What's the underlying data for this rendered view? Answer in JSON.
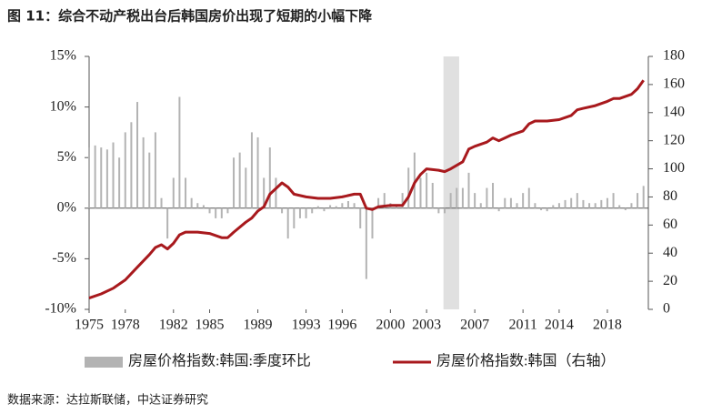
{
  "chart_data": {
    "type": "bar_line",
    "title": "图 11：综合不动产税出台后韩国房价出现了短期的小幅下降",
    "source": "数据来源：达拉斯联储，中达证券研究",
    "xlim": [
      1975,
      2021.4
    ],
    "xticks": [
      1975,
      1978,
      1982,
      1985,
      1989,
      1993,
      1996,
      2000,
      2003,
      2007,
      2011,
      2014,
      2018
    ],
    "ylim": [
      -10,
      15
    ],
    "yticks": [
      {
        "value": -10,
        "label": "-10%"
      },
      {
        "value": -5,
        "label": "-5%"
      },
      {
        "value": 0,
        "label": "0%"
      },
      {
        "value": 5,
        "label": "5%"
      },
      {
        "value": 10,
        "label": "10%"
      },
      {
        "value": 15,
        "label": "15%"
      }
    ],
    "y2lim": [
      0,
      180
    ],
    "y2ticks": [
      0,
      20,
      40,
      60,
      80,
      100,
      120,
      140,
      160,
      180
    ],
    "highlight_x": [
      2004.4,
      2005.7
    ],
    "series": [
      {
        "name": "房屋价格指数:韩国:季度环比",
        "color": "#b3b3b3",
        "kind": "bar",
        "x": [
          1975,
          1975.5,
          1976,
          1976.5,
          1977,
          1977.5,
          1978,
          1978.5,
          1979,
          1979.5,
          1980,
          1980.5,
          1981,
          1981.5,
          1982,
          1982.5,
          1983,
          1983.5,
          1984,
          1984.5,
          1985,
          1985.5,
          1986,
          1986.5,
          1987,
          1987.5,
          1988,
          1988.5,
          1989,
          1989.5,
          1990,
          1990.5,
          1991,
          1991.5,
          1992,
          1992.5,
          1993,
          1993.5,
          1994,
          1994.5,
          1995,
          1995.5,
          1996,
          1996.5,
          1997,
          1997.5,
          1998,
          1998.5,
          1999,
          1999.5,
          2000,
          2000.5,
          2001,
          2001.5,
          2002,
          2002.5,
          2003,
          2003.5,
          2004,
          2004.5,
          2005,
          2005.5,
          2006,
          2006.5,
          2007,
          2007.5,
          2008,
          2008.5,
          2009,
          2009.5,
          2010,
          2010.5,
          2011,
          2011.5,
          2012,
          2012.5,
          2013,
          2013.5,
          2014,
          2014.5,
          2015,
          2015.5,
          2016,
          2016.5,
          2017,
          2017.5,
          2018,
          2018.5,
          2019,
          2019.5,
          2020,
          2020.5,
          2021
        ],
        "values": [
          6,
          6.2,
          6,
          5.8,
          6.5,
          5,
          7.5,
          8.5,
          10.5,
          7,
          5.5,
          7.5,
          1,
          -3,
          3,
          11,
          3,
          1,
          0.5,
          0.3,
          -0.5,
          -1,
          -1,
          -0.5,
          5,
          5.5,
          4,
          7.5,
          7,
          3,
          6,
          3,
          -0.5,
          -3,
          -2,
          -1,
          -1,
          -0.5,
          0.2,
          -0.3,
          0.3,
          0.2,
          0.5,
          0.7,
          0.5,
          -2,
          -7,
          -3,
          1,
          1.5,
          0.5,
          0.3,
          1.5,
          4,
          5.5,
          3,
          3.5,
          2.5,
          -0.5,
          -0.5,
          1.5,
          2,
          2,
          3.5,
          1.5,
          0.5,
          2,
          2.5,
          -0.3,
          1,
          1,
          0.5,
          1.5,
          2,
          0.5,
          -0.2,
          -0.3,
          0.3,
          0.5,
          0.8,
          1,
          1.5,
          0.8,
          0.5,
          0.5,
          0.8,
          1,
          1.5,
          0.3,
          -0.2,
          0.5,
          1.5,
          2.2
        ]
      },
      {
        "name": "房屋价格指数:韩国（右轴）",
        "color": "#a8191d",
        "kind": "line",
        "axis": "y2",
        "x": [
          1975,
          1976,
          1977,
          1978,
          1979,
          1980,
          1980.5,
          1981,
          1981.5,
          1982,
          1982.5,
          1983,
          1984,
          1985,
          1986,
          1986.5,
          1987,
          1988,
          1988.5,
          1989,
          1989.5,
          1990,
          1991,
          1991.5,
          1992,
          1993,
          1994,
          1995,
          1996,
          1997,
          1997.5,
          1998,
          1998.5,
          1999,
          2000,
          2001,
          2001.5,
          2002,
          2002.5,
          2003,
          2004,
          2004.5,
          2005,
          2006,
          2006.5,
          2007,
          2008,
          2008.5,
          2009,
          2009.5,
          2010,
          2011,
          2011.5,
          2012,
          2013,
          2014,
          2015,
          2015.5,
          2016,
          2017,
          2018,
          2018.5,
          2019,
          2020,
          2020.5,
          2021
        ],
        "values": [
          8,
          11,
          15,
          21,
          30,
          39,
          44,
          46,
          43,
          47,
          53,
          55,
          55,
          54,
          51,
          51,
          55,
          62,
          65,
          70,
          73,
          82,
          90,
          87,
          82,
          80,
          79,
          79,
          80,
          82,
          82,
          72,
          71,
          73,
          74,
          74,
          80,
          90,
          96,
          100,
          99,
          98,
          100,
          105,
          114,
          116,
          119,
          122,
          120,
          122,
          124,
          127,
          132,
          134,
          134,
          135,
          138,
          142,
          143,
          145,
          148,
          150,
          150,
          153,
          157,
          163
        ]
      }
    ]
  }
}
